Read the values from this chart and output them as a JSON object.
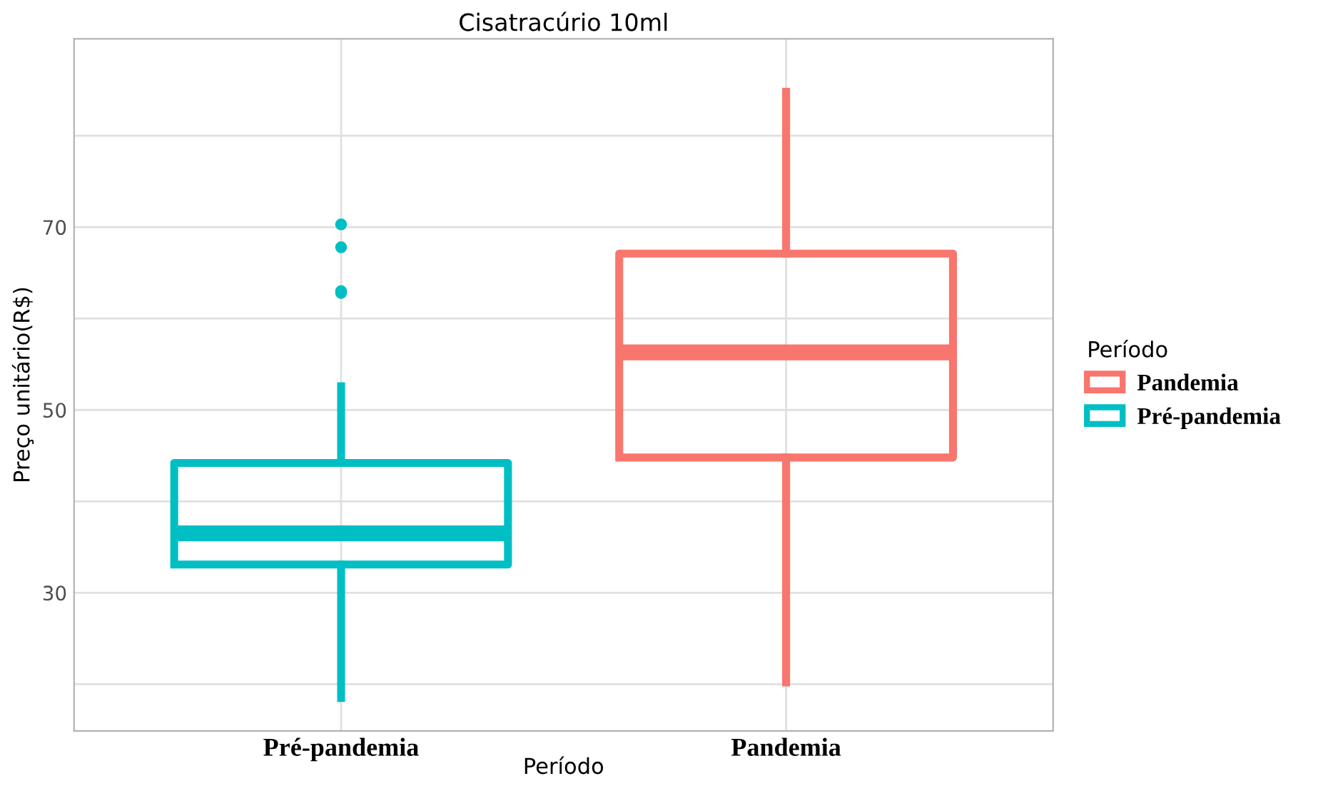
{
  "chart_data": {
    "type": "box",
    "title": "Cisatracúrio 10ml",
    "xlabel": "Período",
    "ylabel": "Preço unitário(R$)",
    "legend_title": "Período",
    "categories": [
      "Pré-pandemia",
      "Pandemia"
    ],
    "series": [
      {
        "name": "Pandemia",
        "color": "#f8766d",
        "boxes": [
          null,
          {
            "low": 20.2,
            "q1": 44.8,
            "median": 56.3,
            "q3": 67.1,
            "high": 84.8
          }
        ]
      },
      {
        "name": "Pré-pandemia",
        "color": "#00bfc4",
        "boxes": [
          {
            "low": 18.5,
            "q1": 33.1,
            "median": 36.5,
            "q3": 44.2,
            "high": 52.6,
            "outliers": [
              70.3,
              67.8,
              63.0,
              62.8
            ]
          },
          null
        ]
      }
    ],
    "ylim": [
      14.9,
      90.6
    ],
    "yticks": [
      {
        "value": 20,
        "label": null
      },
      30,
      {
        "value": 40,
        "label": null
      },
      50,
      {
        "value": 60,
        "label": null
      },
      70,
      {
        "value": 80,
        "label": null
      }
    ],
    "grid": true,
    "legend": "right"
  }
}
